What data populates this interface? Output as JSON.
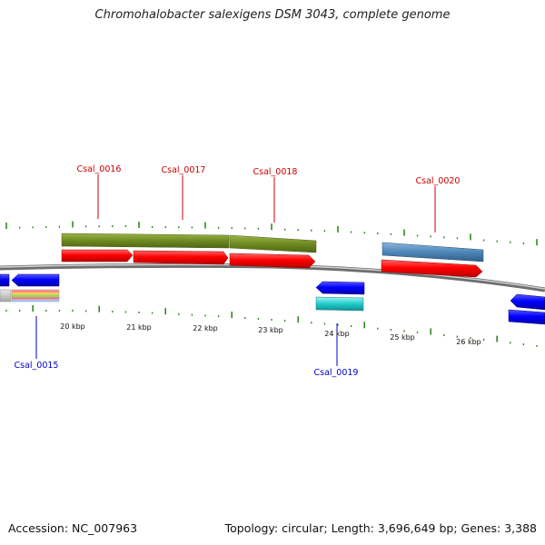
{
  "title": "Chromohalobacter salexigens DSM 3043, complete genome",
  "footer": {
    "accession": "Accession: NC_007963",
    "summary": "Topology: circular; Length: 3,696,649 bp; Genes: 3,388"
  },
  "colors": {
    "forward_label": "#cc0000",
    "reverse_label": "#0000cc",
    "backbone": "#8a8a8a",
    "tick": "#2e8b1e",
    "olive": "#6e8a22",
    "red": "#ff0000",
    "blue": "#0000ff",
    "steel": "#4f86b8",
    "cyan": "#22cccc"
  },
  "scale_labels": [
    "20 kbp",
    "21 kbp",
    "22 kbp",
    "23 kbp",
    "24 kbp",
    "25 kbp",
    "26 kbp"
  ],
  "gene_labels": [
    "Csal_0015",
    "Csal_0016",
    "Csal_0017",
    "Csal_0018",
    "Csal_0019",
    "Csal_0020"
  ],
  "icons": {
    "forward_gene": "right-arrow-feature",
    "reverse_gene": "left-arrow-feature"
  }
}
